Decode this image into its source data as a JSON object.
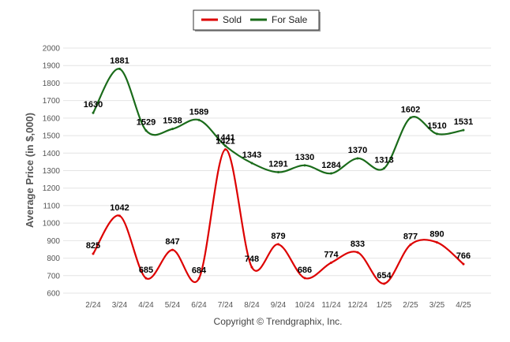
{
  "chart_data": {
    "type": "line",
    "title": "",
    "xlabel": "",
    "ylabel": "Average Price (in $,000)",
    "ylim": [
      600,
      2000
    ],
    "yticks": [
      600,
      700,
      800,
      900,
      1000,
      1100,
      1200,
      1300,
      1400,
      1500,
      1600,
      1700,
      1800,
      1900,
      2000
    ],
    "categories": [
      "2/24",
      "3/24",
      "4/24",
      "5/24",
      "6/24",
      "7/24",
      "8/24",
      "9/24",
      "10/24",
      "11/24",
      "12/24",
      "1/25",
      "2/25",
      "3/25",
      "4/25"
    ],
    "grid": true,
    "legend": "top-center",
    "series": [
      {
        "name": "Sold",
        "color": "#dd0000",
        "values": [
          825,
          1042,
          685,
          847,
          684,
          1421,
          748,
          879,
          686,
          774,
          833,
          654,
          877,
          890,
          766
        ]
      },
      {
        "name": "For Sale",
        "color": "#1a6b1a",
        "values": [
          1630,
          1881,
          1529,
          1538,
          1589,
          1441,
          1343,
          1291,
          1330,
          1284,
          1370,
          1313,
          1602,
          1510,
          1531
        ]
      }
    ],
    "footer": "Copyright © Trendgraphix, Inc."
  }
}
